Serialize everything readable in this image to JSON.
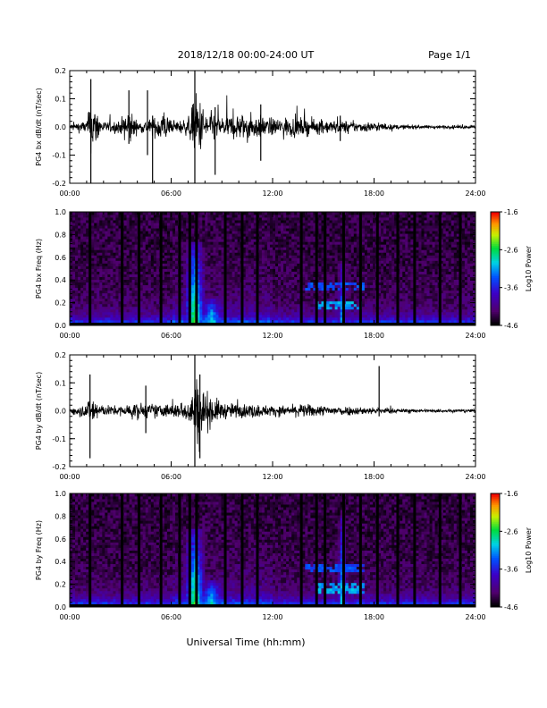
{
  "header": {
    "title": "2018/12/18  00:00-24:00 UT",
    "page": "Page 1/1"
  },
  "chart_data": [
    {
      "type": "line",
      "ylabel": "PG4 bx dB/dt (nT/sec)",
      "xlabel": "",
      "xlim": [
        0,
        24
      ],
      "ylim": [
        -0.2,
        0.2
      ],
      "x_ticks": [
        "00:00",
        "06:00",
        "12:00",
        "18:00",
        "24:00"
      ],
      "y_ticks": [
        "0.2",
        "0.1",
        "0.0",
        "-0.1",
        "-0.2"
      ],
      "envelope": {
        "x": [
          0,
          1,
          1.3,
          2,
          3,
          3.5,
          4,
          5,
          5.5,
          6,
          7,
          7.5,
          8,
          9,
          10,
          11,
          12,
          13,
          14,
          15,
          16,
          17,
          18,
          19,
          20,
          21,
          22,
          23,
          24
        ],
        "amplitude": [
          0.02,
          0.04,
          0.16,
          0.03,
          0.04,
          0.12,
          0.03,
          0.05,
          0.12,
          0.03,
          0.05,
          0.2,
          0.1,
          0.06,
          0.08,
          0.07,
          0.05,
          0.06,
          0.05,
          0.04,
          0.04,
          0.03,
          0.03,
          0.015,
          0.012,
          0.01,
          0.01,
          0.01,
          0.01
        ]
      },
      "spikes": [
        {
          "x": 1.25,
          "ymin": -0.2,
          "ymax": 0.17
        },
        {
          "x": 3.5,
          "ymin": -0.06,
          "ymax": 0.13
        },
        {
          "x": 4.6,
          "ymin": -0.1,
          "ymax": 0.13
        },
        {
          "x": 4.9,
          "ymin": -0.2,
          "ymax": 0.04
        },
        {
          "x": 7.4,
          "ymin": -0.2,
          "ymax": 0.2
        },
        {
          "x": 8.6,
          "ymin": -0.17,
          "ymax": 0.07
        },
        {
          "x": 11.3,
          "ymin": -0.12,
          "ymax": 0.08
        },
        {
          "x": 16.0,
          "ymin": -0.05,
          "ymax": 0.04
        }
      ]
    },
    {
      "type": "heatmap",
      "ylabel": "PG4 bx Freq (Hz)",
      "xlabel": "",
      "xlim": [
        0,
        24
      ],
      "ylim": [
        0.0,
        1.0
      ],
      "x_ticks": [
        "00:00",
        "06:00",
        "12:00",
        "18:00",
        "24:00"
      ],
      "y_ticks": [
        "1.0",
        "0.8",
        "0.6",
        "0.4",
        "0.2",
        "0.0"
      ],
      "colorbar": {
        "label": "Log10 Power",
        "range": [
          -4.6,
          -1.6
        ],
        "ticks": [
          "-1.6",
          "-2.6",
          "-3.6",
          "-4.6"
        ]
      },
      "dropout_bars": [
        1.2,
        3.1,
        4.1,
        5.4,
        6.5,
        7.1,
        7.5,
        9.2,
        10.2,
        11.1,
        13.7,
        14.6,
        15.1,
        16.2,
        17.2,
        18.2,
        19.4,
        20.4,
        21.9,
        23.1
      ],
      "bright_events": [
        {
          "x": 7.4,
          "width": 0.8,
          "fmax": 0.75,
          "level": -2.2
        },
        {
          "x": 8.4,
          "width": 1.2,
          "fmax": 0.25,
          "level": -2.6
        },
        {
          "x": 16.1,
          "width": 0.3,
          "fmax": 0.55,
          "level": -3.0
        }
      ],
      "emission_bands": [
        {
          "x0": 14.0,
          "x1": 17.5,
          "freq": 0.34,
          "level": -3.4
        },
        {
          "x0": 14.5,
          "x1": 17.5,
          "freq": 0.18,
          "level": -3.1
        }
      ]
    },
    {
      "type": "line",
      "ylabel": "PG4 by dB/dt (nT/sec)",
      "xlabel": "",
      "xlim": [
        0,
        24
      ],
      "ylim": [
        -0.2,
        0.2
      ],
      "x_ticks": [
        "00:00",
        "06:00",
        "12:00",
        "18:00",
        "24:00"
      ],
      "y_ticks": [
        "0.2",
        "0.1",
        "0.0",
        "-0.1",
        "-0.2"
      ],
      "envelope": {
        "x": [
          0,
          1,
          1.3,
          2,
          3,
          4,
          5,
          6,
          7,
          7.5,
          8,
          9,
          10,
          11,
          12,
          13,
          14,
          15,
          16,
          17,
          18,
          19,
          20,
          21,
          22,
          23,
          24
        ],
        "amplitude": [
          0.02,
          0.04,
          0.1,
          0.03,
          0.03,
          0.05,
          0.04,
          0.04,
          0.06,
          0.2,
          0.12,
          0.05,
          0.04,
          0.04,
          0.03,
          0.03,
          0.04,
          0.03,
          0.03,
          0.025,
          0.02,
          0.015,
          0.01,
          0.01,
          0.01,
          0.01,
          0.01
        ]
      },
      "spikes": [
        {
          "x": 1.2,
          "ymin": -0.17,
          "ymax": 0.13
        },
        {
          "x": 4.5,
          "ymin": -0.08,
          "ymax": 0.09
        },
        {
          "x": 7.4,
          "ymin": -0.2,
          "ymax": 0.2
        },
        {
          "x": 7.7,
          "ymin": -0.17,
          "ymax": 0.13
        },
        {
          "x": 18.3,
          "ymin": -0.02,
          "ymax": 0.16
        }
      ]
    },
    {
      "type": "heatmap",
      "ylabel": "PG4 by Freq (Hz)",
      "xlabel": "Universal Time (hh:mm)",
      "xlim": [
        0,
        24
      ],
      "ylim": [
        0.0,
        1.0
      ],
      "x_ticks": [
        "00:00",
        "06:00",
        "12:00",
        "18:00",
        "24:00"
      ],
      "y_ticks": [
        "1.0",
        "0.8",
        "0.6",
        "0.4",
        "0.2",
        "0.0"
      ],
      "colorbar": {
        "label": "Log10 Power",
        "range": [
          -4.6,
          -1.6
        ],
        "ticks": [
          "-1.6",
          "-2.6",
          "-3.6",
          "-4.6"
        ]
      },
      "dropout_bars": [
        1.2,
        3.1,
        4.1,
        5.4,
        6.5,
        7.1,
        7.5,
        9.2,
        10.2,
        11.1,
        13.7,
        14.6,
        15.1,
        16.2,
        17.2,
        18.2,
        19.4,
        20.4,
        21.9,
        23.1
      ],
      "bright_events": [
        {
          "x": 7.4,
          "width": 0.8,
          "fmax": 0.7,
          "level": -2.2
        },
        {
          "x": 8.4,
          "width": 1.2,
          "fmax": 0.25,
          "level": -2.6
        },
        {
          "x": 16.1,
          "width": 0.3,
          "fmax": 0.8,
          "level": -2.8
        }
      ],
      "emission_bands": [
        {
          "x0": 14.0,
          "x1": 17.5,
          "freq": 0.35,
          "level": -3.4
        },
        {
          "x0": 14.5,
          "x1": 17.5,
          "freq": 0.17,
          "level": -3.1
        }
      ]
    }
  ]
}
